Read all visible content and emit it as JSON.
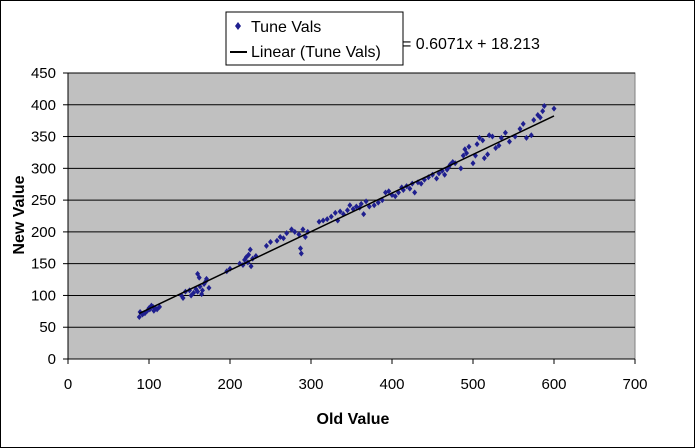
{
  "chart_data": {
    "type": "scatter",
    "title": "",
    "xlabel": "Old Value",
    "ylabel": "New Value",
    "xlim": [
      0,
      700
    ],
    "ylim": [
      0,
      450
    ],
    "xticks": [
      0,
      100,
      200,
      300,
      400,
      500,
      600,
      700
    ],
    "yticks": [
      0,
      50,
      100,
      150,
      200,
      250,
      300,
      350,
      400,
      450
    ],
    "grid": "horizontal major gridlines",
    "plot_background": "#c0c0c0",
    "legend_position": "top-center",
    "equation_label": "= 0.6071x + 18.213",
    "series": [
      {
        "name": "Tune Vals",
        "kind": "scatter",
        "marker": "diamond",
        "color": "#1f1f8f",
        "points": [
          [
            88,
            66
          ],
          [
            89,
            74
          ],
          [
            92,
            70
          ],
          [
            95,
            72
          ],
          [
            98,
            76
          ],
          [
            100,
            80
          ],
          [
            101,
            78
          ],
          [
            103,
            84
          ],
          [
            105,
            82
          ],
          [
            106,
            76
          ],
          [
            108,
            80
          ],
          [
            110,
            78
          ],
          [
            113,
            82
          ],
          [
            140,
            100
          ],
          [
            142,
            96
          ],
          [
            145,
            106
          ],
          [
            150,
            108
          ],
          [
            152,
            100
          ],
          [
            155,
            104
          ],
          [
            158,
            110
          ],
          [
            160,
            106
          ],
          [
            160,
            134
          ],
          [
            162,
            128
          ],
          [
            163,
            114
          ],
          [
            165,
            102
          ],
          [
            166,
            108
          ],
          [
            168,
            118
          ],
          [
            170,
            122
          ],
          [
            171,
            126
          ],
          [
            174,
            112
          ],
          [
            196,
            138
          ],
          [
            200,
            142
          ],
          [
            212,
            150
          ],
          [
            216,
            148
          ],
          [
            218,
            156
          ],
          [
            220,
            160
          ],
          [
            222,
            152
          ],
          [
            223,
            164
          ],
          [
            225,
            172
          ],
          [
            226,
            146
          ],
          [
            228,
            158
          ],
          [
            232,
            162
          ],
          [
            245,
            178
          ],
          [
            250,
            184
          ],
          [
            258,
            186
          ],
          [
            262,
            192
          ],
          [
            266,
            190
          ],
          [
            270,
            198
          ],
          [
            276,
            204
          ],
          [
            280,
            200
          ],
          [
            285,
            196
          ],
          [
            287,
            174
          ],
          [
            288,
            166
          ],
          [
            290,
            204
          ],
          [
            293,
            192
          ],
          [
            296,
            200
          ],
          [
            310,
            216
          ],
          [
            315,
            218
          ],
          [
            320,
            220
          ],
          [
            325,
            224
          ],
          [
            330,
            230
          ],
          [
            333,
            218
          ],
          [
            336,
            232
          ],
          [
            340,
            228
          ],
          [
            345,
            234
          ],
          [
            348,
            242
          ],
          [
            352,
            236
          ],
          [
            356,
            240
          ],
          [
            360,
            238
          ],
          [
            362,
            244
          ],
          [
            365,
            228
          ],
          [
            368,
            248
          ],
          [
            372,
            240
          ],
          [
            378,
            242
          ],
          [
            383,
            246
          ],
          [
            388,
            250
          ],
          [
            392,
            262
          ],
          [
            396,
            264
          ],
          [
            400,
            258
          ],
          [
            404,
            256
          ],
          [
            408,
            262
          ],
          [
            412,
            270
          ],
          [
            414,
            266
          ],
          [
            418,
            272
          ],
          [
            422,
            268
          ],
          [
            425,
            276
          ],
          [
            428,
            262
          ],
          [
            432,
            278
          ],
          [
            436,
            276
          ],
          [
            440,
            282
          ],
          [
            445,
            286
          ],
          [
            450,
            290
          ],
          [
            455,
            284
          ],
          [
            458,
            292
          ],
          [
            462,
            296
          ],
          [
            465,
            290
          ],
          [
            468,
            298
          ],
          [
            470,
            302
          ],
          [
            472,
            306
          ],
          [
            475,
            310
          ],
          [
            478,
            308
          ],
          [
            485,
            300
          ],
          [
            488,
            320
          ],
          [
            490,
            330
          ],
          [
            492,
            324
          ],
          [
            495,
            334
          ],
          [
            500,
            308
          ],
          [
            503,
            320
          ],
          [
            505,
            338
          ],
          [
            508,
            348
          ],
          [
            512,
            344
          ],
          [
            514,
            316
          ],
          [
            518,
            322
          ],
          [
            520,
            352
          ],
          [
            524,
            350
          ],
          [
            528,
            332
          ],
          [
            532,
            336
          ],
          [
            535,
            348
          ],
          [
            540,
            356
          ],
          [
            545,
            342
          ],
          [
            552,
            350
          ],
          [
            558,
            362
          ],
          [
            562,
            370
          ],
          [
            566,
            348
          ],
          [
            572,
            352
          ],
          [
            575,
            376
          ],
          [
            580,
            384
          ],
          [
            583,
            380
          ],
          [
            586,
            390
          ],
          [
            588,
            398
          ],
          [
            600,
            394
          ]
        ]
      },
      {
        "name": "Linear (Tune Vals)",
        "kind": "trendline",
        "color": "#000000",
        "slope": 0.6071,
        "intercept": 18.213,
        "x_range": [
          88,
          600
        ]
      }
    ]
  }
}
